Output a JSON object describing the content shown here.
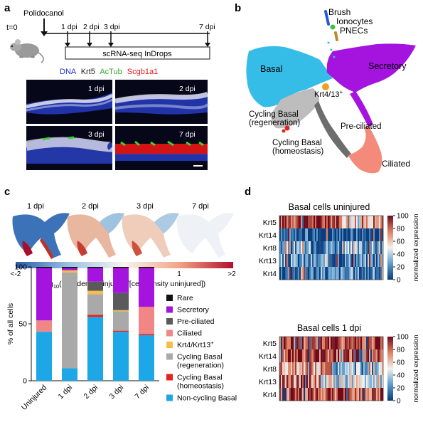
{
  "panels": {
    "a": {
      "label": "a",
      "agent": "Polidocanol",
      "t0": "t=0",
      "timepoints": [
        "1 dpi",
        "2 dpi",
        "3 dpi",
        "7 dpi"
      ],
      "box_label": "scRNA-seq InDrops",
      "stain_legend": [
        {
          "text": "DNA",
          "color": "#1f2dd6"
        },
        {
          "text": "Krt5",
          "color": "#222222"
        },
        {
          "text": "AcTub",
          "color": "#2fa82f"
        },
        {
          "text": "Scgb1a1",
          "color": "#e01b1b"
        }
      ],
      "micrographs": [
        "1 dpi",
        "2 dpi",
        "3 dpi",
        "7 dpi"
      ]
    },
    "b": {
      "label": "b",
      "clusters": {
        "brush": "Brush",
        "ionocytes": "Ionocytes",
        "pnecs": "PNECs",
        "basal": "Basal",
        "secretory": "Secretory",
        "krt4_13": "Krt4/13",
        "krt4_13_sup": "+",
        "cycling_regen_1": "Cycling Basal",
        "cycling_regen_2": "(regeneration)",
        "preciliated": "Pre-ciliated",
        "cycling_homeo_1": "Cycling Basal",
        "cycling_homeo_2": "(homeostasis)",
        "ciliated": "Ciliated"
      }
    },
    "c": {
      "label": "c",
      "density_titles": [
        "1 dpi",
        "2 dpi",
        "3 dpi",
        "7 dpi"
      ],
      "colorbar_ticks": [
        "<-2",
        "-1",
        "0",
        "1",
        ">2"
      ],
      "colorbar_label_pre": "log",
      "colorbar_label_sub": "10",
      "colorbar_label_post": "([cell density injured]/[cell density uninjured])"
    },
    "d": {
      "label": "d",
      "heatmaps": [
        {
          "title": "Basal cells uninjured",
          "genes": [
            "Krt5",
            "Krt14",
            "Krt8",
            "Krt13",
            "Krt4"
          ]
        },
        {
          "title": "Basal cells 1 dpi",
          "genes": [
            "Krt5",
            "Krt14",
            "Krt8",
            "Krt13",
            "Krt4"
          ]
        }
      ],
      "colorbar_ticks": [
        "100",
        "80",
        "60",
        "40",
        "20",
        "0"
      ],
      "colorbar_label": "normalized expression"
    }
  },
  "chart_data": [
    {
      "type": "bar",
      "stacked": true,
      "panel": "c",
      "categories": [
        "Uninjured",
        "1 dpi",
        "2 dpi",
        "3 dpi",
        "7 dpi"
      ],
      "ylabel": "% of all cells",
      "ylim": [
        0,
        100
      ],
      "yticks": [
        "0",
        "50",
        "100"
      ],
      "series": [
        {
          "name": "Non-cycling Basal",
          "color": "#1ea7e6",
          "values": [
            43,
            11,
            56,
            43,
            40
          ]
        },
        {
          "name": "Cycling Basal (homeostasis)",
          "color": "#e8211d",
          "values": [
            0,
            0,
            2,
            1,
            1
          ]
        },
        {
          "name": "Cycling Basal (regeneration)",
          "color": "#a9a9a9",
          "values": [
            0,
            84,
            18,
            17,
            0
          ]
        },
        {
          "name": "Krt4/Krt13",
          "color": "#f2c04a",
          "values": [
            0,
            2,
            3,
            1,
            0
          ]
        },
        {
          "name": "Ciliated",
          "color": "#f08686",
          "values": [
            10,
            0,
            0,
            0,
            24
          ]
        },
        {
          "name": "Pre-ciliated",
          "color": "#5a5a5a",
          "values": [
            0,
            0,
            8,
            15,
            0
          ]
        },
        {
          "name": "Secretory",
          "color": "#a514de",
          "values": [
            46,
            2,
            12,
            22,
            34
          ]
        },
        {
          "name": "Rare",
          "color": "#111111",
          "values": [
            1,
            1,
            1,
            1,
            1
          ]
        }
      ],
      "legend": [
        "Rare",
        "Secretory",
        "Pre-ciliated",
        "Ciliated",
        "Krt4/Krt13",
        "Cycling Basal (regeneration)",
        "Cycling Basal (homeostasis)",
        "Non-cycling Basal"
      ],
      "legend_sup": {
        "Krt4/Krt13": "+"
      }
    }
  ],
  "colors": {
    "basal": "#35bde8",
    "secretory": "#a514de",
    "cycling_regen": "#bdbdbd",
    "preciliated": "#6d6d6d",
    "ciliated": "#f48a7a",
    "cycling_homeo": "#e0261d",
    "krt4_13": "#f0a020",
    "brush": "#2a55e0",
    "ionocytes": "#3cc43c",
    "pnecs": "#c08a2a"
  }
}
